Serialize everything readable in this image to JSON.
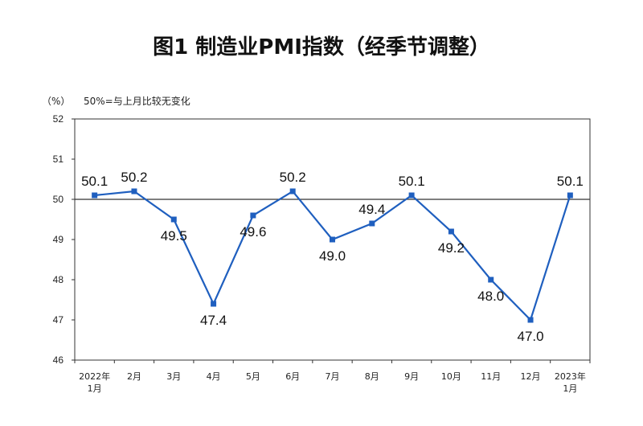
{
  "title": "图1 制造业PMI指数（经季节调整）",
  "unit": "（%）",
  "note": "50%=与上月比较无变化",
  "colors": {
    "series": "#1f5fbf",
    "axis": "#333333",
    "reference": "#333333"
  },
  "chart_data": {
    "type": "line",
    "title": "图1 制造业PMI指数（经季节调整）",
    "ylabel": "（%）",
    "annotation": "50%=与上月比较无变化",
    "categories": [
      [
        "2022年",
        "1月"
      ],
      [
        "2月"
      ],
      [
        "3月"
      ],
      [
        "4月"
      ],
      [
        "5月"
      ],
      [
        "6月"
      ],
      [
        "7月"
      ],
      [
        "8月"
      ],
      [
        "9月"
      ],
      [
        "10月"
      ],
      [
        "11月"
      ],
      [
        "12月"
      ],
      [
        "2023年",
        "1月"
      ]
    ],
    "values": [
      50.1,
      50.2,
      49.5,
      47.4,
      49.6,
      50.2,
      49.0,
      49.4,
      50.1,
      49.2,
      48.0,
      47.0,
      50.1
    ],
    "value_labels": [
      "50.1",
      "50.2",
      "49.5",
      "47.4",
      "49.6",
      "50.2",
      "49.0",
      "49.4",
      "50.1",
      "49.2",
      "48.0",
      "47.0",
      "50.1"
    ],
    "label_positions": [
      "above",
      "above",
      "below",
      "below",
      "below",
      "above",
      "below",
      "above",
      "above",
      "below",
      "below",
      "below",
      "above"
    ],
    "ylim": [
      46,
      52
    ],
    "yticks": [
      46,
      47,
      48,
      49,
      50,
      51,
      52
    ],
    "reference_line": 50,
    "grid": false,
    "legend": "none"
  }
}
